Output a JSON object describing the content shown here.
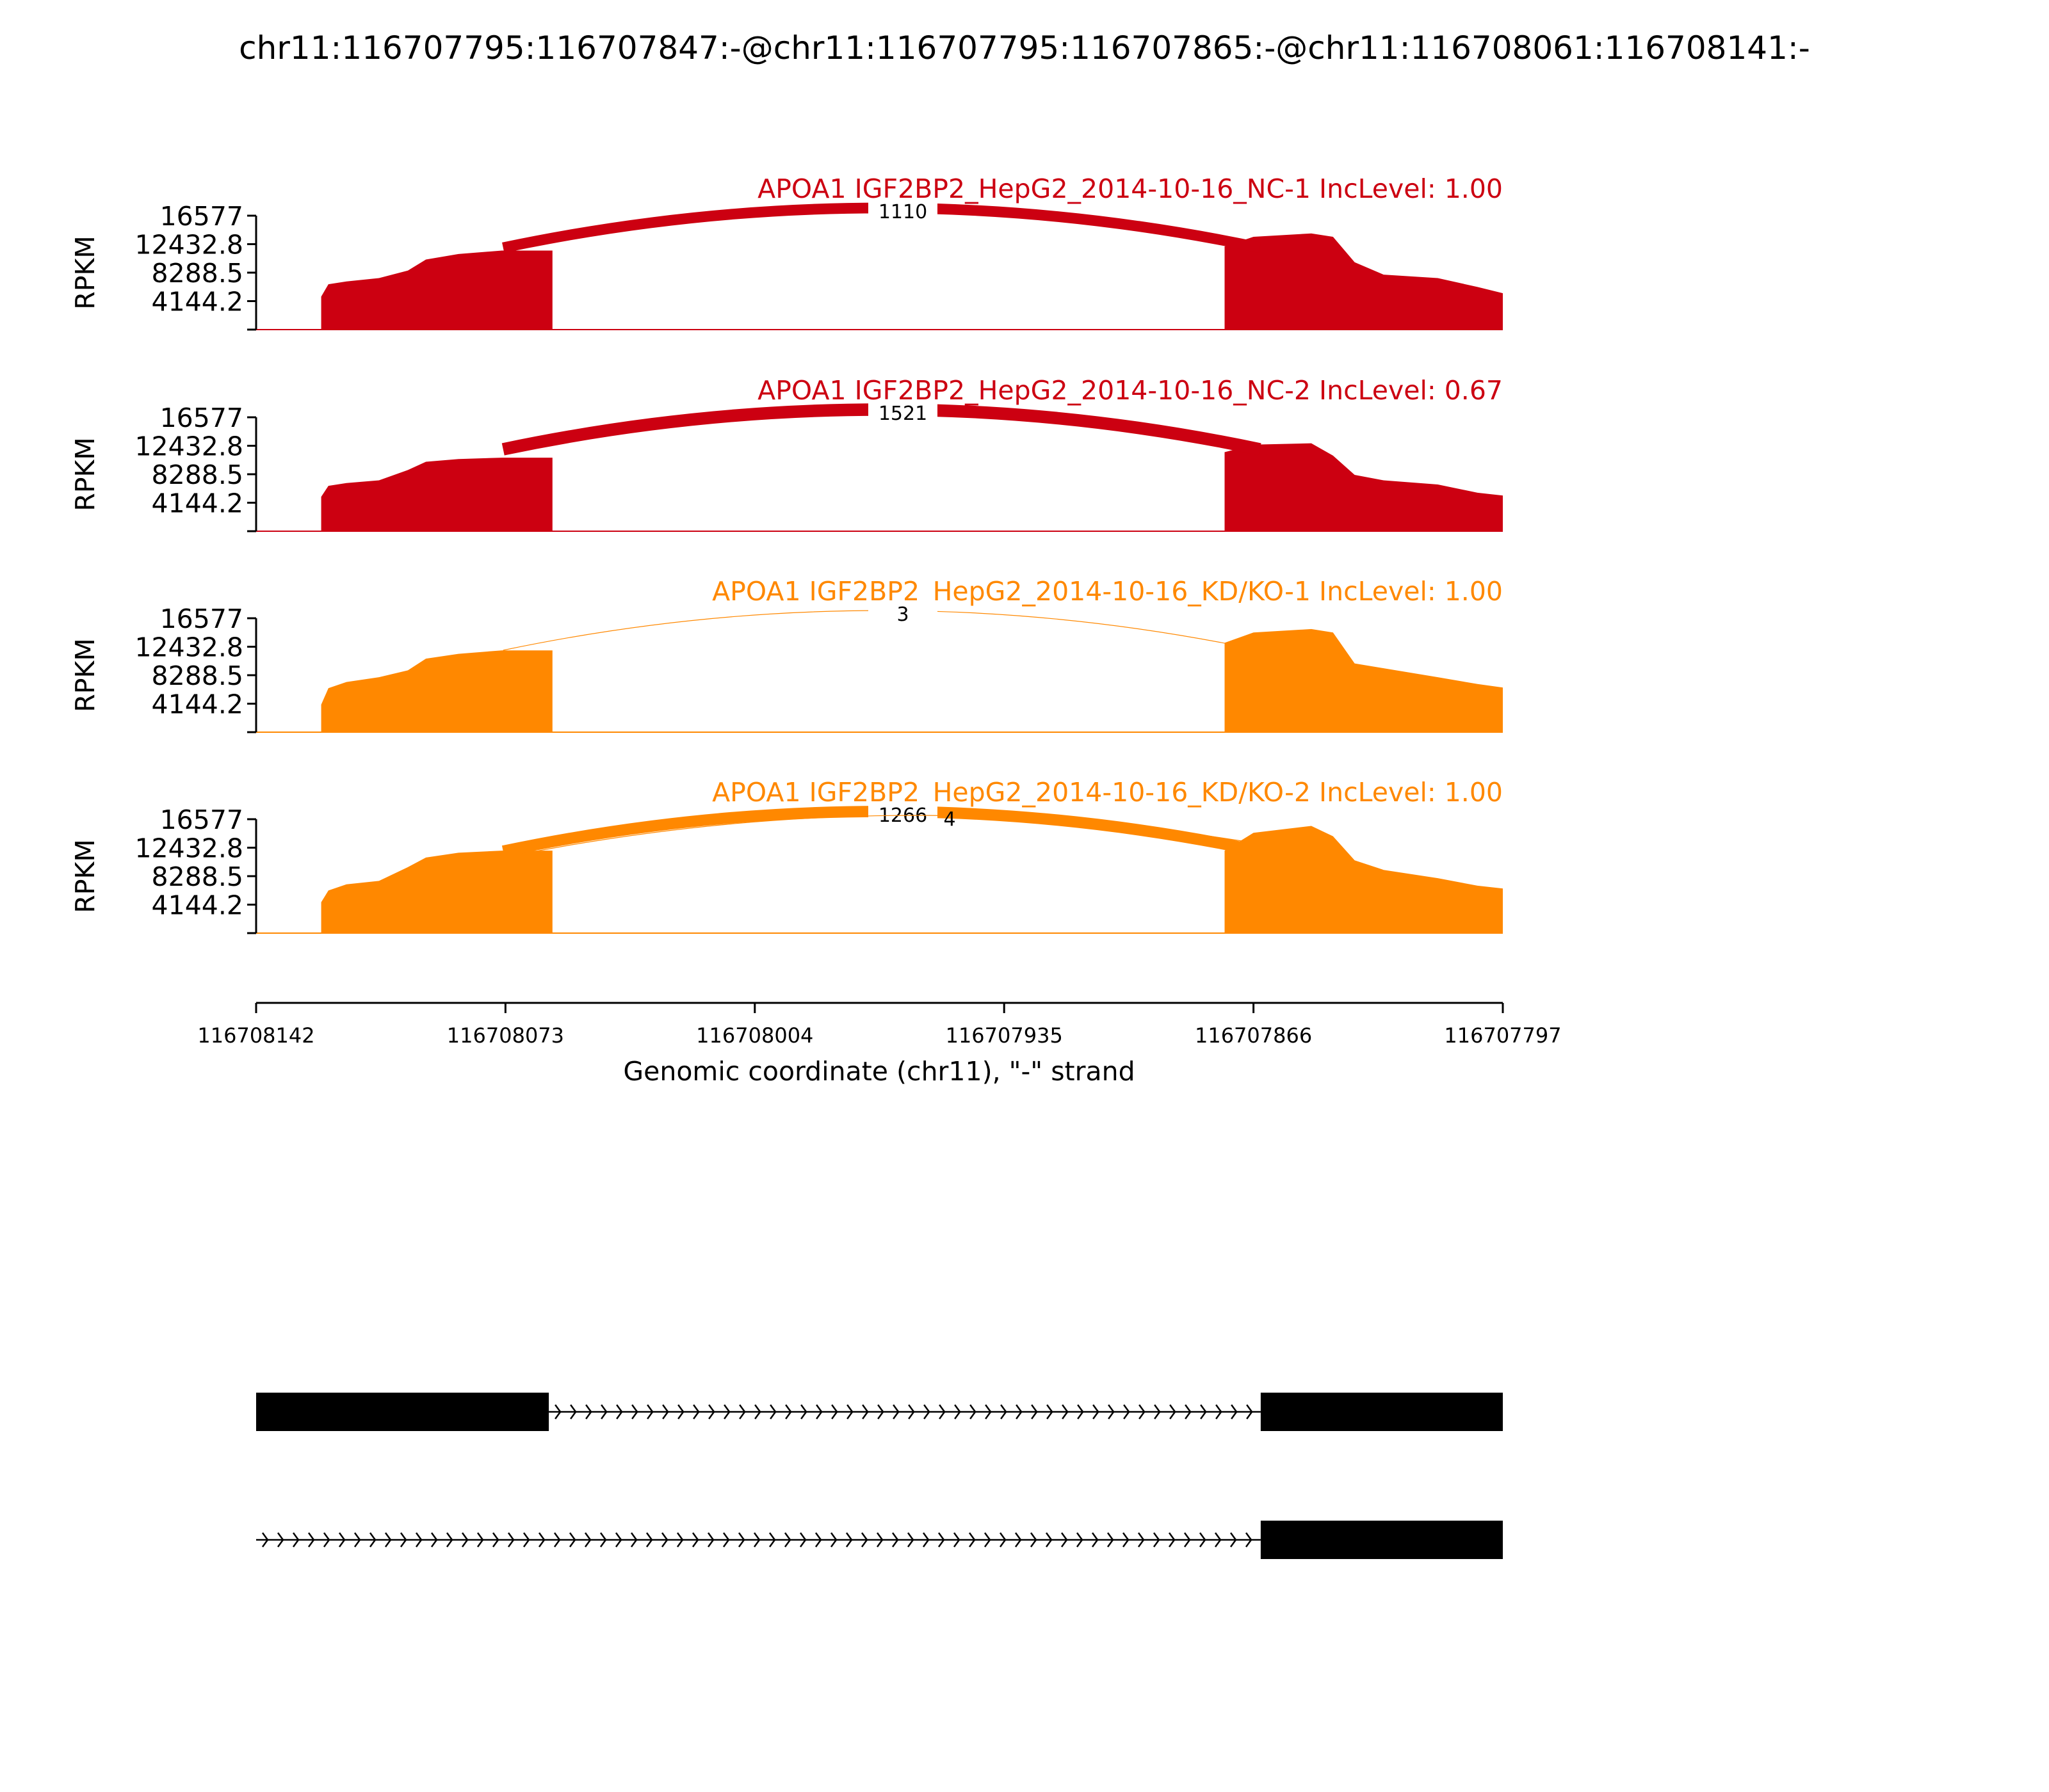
{
  "chart_data": {
    "type": "area",
    "title": "chr11:116707795:116707847:-@chr11:116707795:116707865:-@chr11:116708061:116708141:-",
    "ylabel": "RPKM",
    "xlabel": "Genomic coordinate (chr11), \"-\" strand",
    "x_range": [
      116708142,
      116707797
    ],
    "x_ticks": [
      "116708142",
      "116708073",
      "116708004",
      "116707935",
      "116707866",
      "116707797"
    ],
    "y_range": [
      0,
      16577
    ],
    "y_ticks": [
      "16577",
      "12432.8",
      "8288.5",
      "4144.2"
    ],
    "colors": {
      "NC": "#cc0011",
      "KD": "#ff8800"
    },
    "series": [
      {
        "name": "APOA1 IGF2BP2_HepG2_2014-10-16_NC-1 IncLevel: 1.00",
        "group": "NC",
        "coverage": [
          [
            116708142,
            0
          ],
          [
            116708124,
            0
          ],
          [
            116708124,
            4800
          ],
          [
            116708122,
            6600
          ],
          [
            116708117,
            7000
          ],
          [
            116708108,
            7500
          ],
          [
            116708100,
            8600
          ],
          [
            116708095,
            10200
          ],
          [
            116708086,
            11000
          ],
          [
            116708074,
            11500
          ],
          [
            116708060,
            11500
          ],
          [
            116708060,
            0
          ],
          [
            116707874,
            0
          ],
          [
            116707874,
            12100
          ],
          [
            116707866,
            13500
          ],
          [
            116707850,
            14000
          ],
          [
            116707844,
            13500
          ],
          [
            116707838,
            9800
          ],
          [
            116707830,
            8000
          ],
          [
            116707815,
            7500
          ],
          [
            116707804,
            6200
          ],
          [
            116707797,
            5300
          ],
          [
            116707797,
            0
          ]
        ],
        "junctions": [
          {
            "label": "1110",
            "from": 116708074,
            "to": 116707866,
            "reads": 1110
          }
        ]
      },
      {
        "name": "APOA1 IGF2BP2_HepG2_2014-10-16_NC-2 IncLevel: 0.67",
        "group": "NC",
        "coverage": [
          [
            116708142,
            0
          ],
          [
            116708124,
            0
          ],
          [
            116708124,
            5000
          ],
          [
            116708122,
            6600
          ],
          [
            116708117,
            7000
          ],
          [
            116708108,
            7400
          ],
          [
            116708100,
            8900
          ],
          [
            116708095,
            10100
          ],
          [
            116708086,
            10500
          ],
          [
            116708074,
            10700
          ],
          [
            116708060,
            10700
          ],
          [
            116708060,
            0
          ],
          [
            116707874,
            0
          ],
          [
            116707874,
            11500
          ],
          [
            116707866,
            12600
          ],
          [
            116707850,
            12800
          ],
          [
            116707844,
            11000
          ],
          [
            116707838,
            8200
          ],
          [
            116707830,
            7400
          ],
          [
            116707815,
            6800
          ],
          [
            116707804,
            5600
          ],
          [
            116707797,
            5200
          ],
          [
            116707797,
            0
          ]
        ],
        "junctions": [
          {
            "label": "1521",
            "from": 116708074,
            "to": 116707866,
            "reads": 1521
          }
        ]
      },
      {
        "name": "APOA1 IGF2BP2_HepG2_2014-10-16_KD/KO-1 IncLevel: 1.00",
        "group": "KD",
        "coverage": [
          [
            116708142,
            0
          ],
          [
            116708124,
            0
          ],
          [
            116708124,
            4000
          ],
          [
            116708122,
            6400
          ],
          [
            116708117,
            7300
          ],
          [
            116708108,
            8000
          ],
          [
            116708100,
            9000
          ],
          [
            116708095,
            10700
          ],
          [
            116708086,
            11400
          ],
          [
            116708074,
            11900
          ],
          [
            116708060,
            11900
          ],
          [
            116708060,
            0
          ],
          [
            116707874,
            0
          ],
          [
            116707874,
            13000
          ],
          [
            116707866,
            14500
          ],
          [
            116707850,
            15000
          ],
          [
            116707844,
            14500
          ],
          [
            116707838,
            10000
          ],
          [
            116707830,
            9300
          ],
          [
            116707815,
            8000
          ],
          [
            116707804,
            7000
          ],
          [
            116707797,
            6500
          ],
          [
            116707797,
            0
          ]
        ],
        "junctions": [
          {
            "label": "3",
            "from": 116708074,
            "to": 116707866,
            "reads": 3
          }
        ]
      },
      {
        "name": "APOA1 IGF2BP2_HepG2_2014-10-16_KD/KO-2 IncLevel: 1.00",
        "group": "KD",
        "coverage": [
          [
            116708142,
            0
          ],
          [
            116708124,
            0
          ],
          [
            116708124,
            4500
          ],
          [
            116708122,
            6200
          ],
          [
            116708117,
            7100
          ],
          [
            116708108,
            7600
          ],
          [
            116708100,
            9600
          ],
          [
            116708095,
            11000
          ],
          [
            116708086,
            11700
          ],
          [
            116708074,
            12000
          ],
          [
            116708060,
            12000
          ],
          [
            116708060,
            0
          ],
          [
            116707874,
            0
          ],
          [
            116707874,
            12000
          ],
          [
            116707866,
            14600
          ],
          [
            116707850,
            15600
          ],
          [
            116707844,
            14100
          ],
          [
            116707838,
            10600
          ],
          [
            116707830,
            9200
          ],
          [
            116707815,
            8000
          ],
          [
            116707804,
            6900
          ],
          [
            116707797,
            6500
          ],
          [
            116707797,
            0
          ]
        ],
        "junctions": [
          {
            "label": "1266",
            "from": 116708074,
            "to": 116707866,
            "reads": 1266
          },
          {
            "label": "4",
            "from": 116708074,
            "to": 116707848,
            "reads": 4
          }
        ]
      }
    ],
    "isoforms": [
      {
        "exons": [
          [
            116708142,
            116708061
          ],
          [
            116707864,
            116707797
          ]
        ],
        "intron": [
          116708061,
          116707864
        ]
      },
      {
        "exons": [
          [
            116707864,
            116707797
          ]
        ],
        "intron": [
          116708142,
          116707864
        ]
      }
    ]
  }
}
